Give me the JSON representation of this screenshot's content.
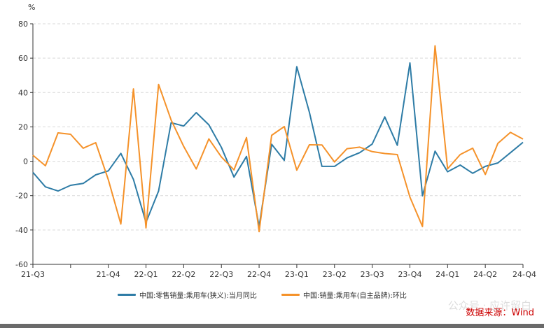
{
  "chart_data": {
    "type": "line",
    "ylabel": "%",
    "ylim": [
      -60,
      80
    ],
    "yticks": [
      -60,
      -40,
      -20,
      0,
      20,
      40,
      60,
      80
    ],
    "x_labels": [
      "21-Q3",
      "",
      "21-Q4",
      "22-Q1",
      "22-Q2",
      "22-Q3",
      "22-Q4",
      "23-Q1",
      "23-Q2",
      "23-Q3",
      "23-Q4",
      "24-Q1",
      "24-Q2",
      "24-Q4"
    ],
    "grid": true,
    "legend_position": "bottom",
    "series": [
      {
        "name": "中国:零售销量:乘用车(狭义):当月同比",
        "color": "#2e7ca6",
        "values": [
          -6.5,
          -14.9,
          -17.3,
          -14,
          -12.9,
          -7.9,
          -5.6,
          4.6,
          -10.6,
          -35.6,
          -17.3,
          22.4,
          20.5,
          28.3,
          21.2,
          8.1,
          -9.2,
          2.8,
          -38,
          9.9,
          0.5,
          55,
          28.5,
          -3,
          -3,
          2,
          5,
          10,
          25.8,
          9.3,
          57.2,
          -20.1,
          5.9,
          -6.1,
          -2.2,
          -7,
          -3,
          -1,
          5,
          11
        ]
      },
      {
        "name": "中国:销量:乘用车(自主品牌):环比",
        "color": "#f5922a",
        "values": [
          3.5,
          -2.6,
          16.5,
          15.7,
          7.6,
          10.8,
          -10.7,
          -36.5,
          42.1,
          -38.8,
          44.7,
          24,
          8.6,
          -4.5,
          13,
          2.5,
          -5,
          13.8,
          -41,
          15.1,
          20.2,
          -5.2,
          9.6,
          9.5,
          -0.4,
          7.3,
          8.2,
          5.6,
          4.5,
          3.9,
          -20.9,
          -38,
          67.2,
          -4.4,
          3.9,
          7.6,
          -7.7,
          10.4,
          16.8,
          12.9
        ]
      }
    ]
  },
  "legend": {
    "series1": "中国:零售销量:乘用车(狭义):当月同比",
    "series2": "中国:销量:乘用车(自主品牌):环比"
  },
  "source": "数据来源：Wind",
  "watermark": "公众号 · 应许留白"
}
